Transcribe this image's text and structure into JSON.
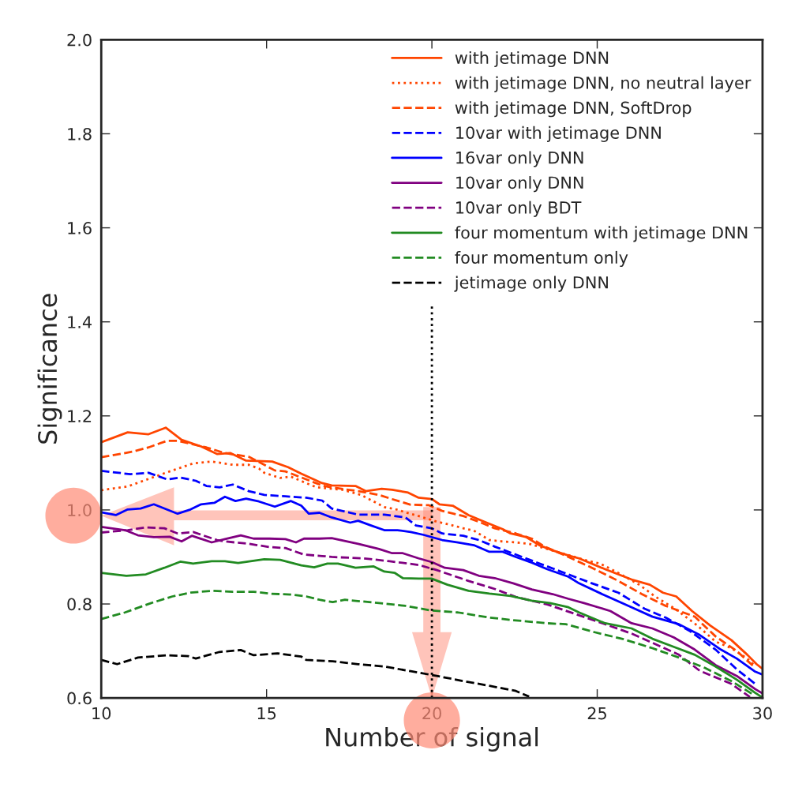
{
  "chart_data": {
    "type": "line",
    "xlabel": "Number of signal",
    "ylabel": "Significance",
    "xlim": [
      10,
      30
    ],
    "ylim": [
      0.6,
      2.0
    ],
    "xticks": [
      10,
      15,
      20,
      25,
      30
    ],
    "yticks": [
      0.6,
      0.8,
      {
        "value": 1,
        "label": "1.0"
      },
      1.2,
      1.4,
      1.6,
      1.8,
      {
        "value": 2,
        "label": "2.0"
      }
    ],
    "legend": "top right",
    "grid": false,
    "ref_lines": [
      {
        "axis": "x",
        "value": 20,
        "color": "#000000",
        "line_style": "dotted"
      }
    ],
    "series": [
      {
        "name": "with jetimage DNN",
        "color": "#ff4500",
        "line_style": "solid",
        "x": [
          10.0,
          10.8,
          11.43,
          11.95,
          12.43,
          13.02,
          13.5,
          13.9,
          14.38,
          15.17,
          15.65,
          16.05,
          16.68,
          16.97,
          17.69,
          18.0,
          18.48,
          18.8,
          19.28,
          19.6,
          20.0,
          20.23,
          20.63,
          21.11,
          21.58,
          22.14,
          22.38,
          22.86,
          23.25,
          23.65,
          24.13,
          24.45,
          25.24,
          26.04,
          26.59,
          26.99,
          27.39,
          27.87,
          28.42,
          29.06,
          29.54,
          29.82,
          30.0
        ],
        "values": [
          1.144,
          1.165,
          1.161,
          1.175,
          1.149,
          1.135,
          1.119,
          1.121,
          1.105,
          1.103,
          1.091,
          1.077,
          1.057,
          1.052,
          1.051,
          1.04,
          1.045,
          1.043,
          1.037,
          1.026,
          1.023,
          1.012,
          1.009,
          0.989,
          0.975,
          0.959,
          0.95,
          0.942,
          0.925,
          0.914,
          0.903,
          0.897,
          0.874,
          0.852,
          0.841,
          0.824,
          0.816,
          0.785,
          0.754,
          0.723,
          0.692,
          0.672,
          0.662
        ]
      },
      {
        "name": "with jetimage DNN, no neutral layer",
        "color": "#ff4500",
        "line_style": "dotted",
        "x": [
          10.0,
          10.8,
          11.51,
          12.07,
          12.78,
          13.34,
          13.98,
          14.46,
          14.77,
          14.93,
          15.41,
          15.73,
          16.2,
          16.52,
          17.29,
          17.85,
          18.24,
          18.56,
          18.88,
          19.2,
          19.6,
          20.15,
          20.47,
          20.95,
          21.27,
          21.74,
          22.14,
          22.54,
          22.94,
          24.76,
          25.08,
          25.56,
          26.27,
          26.75,
          27.39,
          28.03,
          28.58,
          29.06,
          29.54,
          29.78
        ],
        "values": [
          1.042,
          1.05,
          1.068,
          1.082,
          1.099,
          1.103,
          1.096,
          1.096,
          1.088,
          1.079,
          1.068,
          1.071,
          1.057,
          1.048,
          1.043,
          1.032,
          1.018,
          1.006,
          1.002,
          0.995,
          0.987,
          0.975,
          0.97,
          0.961,
          0.956,
          0.936,
          0.933,
          0.931,
          0.928,
          0.891,
          0.886,
          0.869,
          0.841,
          0.816,
          0.788,
          0.754,
          0.72,
          0.706,
          0.684,
          0.667
        ]
      },
      {
        "name": "with jetimage DNN, SoftDrop",
        "color": "#ff4500",
        "line_style": "dashed",
        "x": [
          10.0,
          10.32,
          10.95,
          11.43,
          11.99,
          12.31,
          12.86,
          13.18,
          13.74,
          14.46,
          14.69,
          15.25,
          15.57,
          16.68,
          16.97,
          17.77,
          18.4,
          18.8,
          19.36,
          19.91,
          20.31,
          20.95,
          21.42,
          21.9,
          22.54,
          23.02,
          23.41,
          23.97,
          24.84,
          25.64,
          26.35,
          27.07,
          27.95,
          28.58,
          29.22,
          29.78
        ],
        "values": [
          1.112,
          1.116,
          1.124,
          1.133,
          1.147,
          1.147,
          1.138,
          1.133,
          1.121,
          1.113,
          1.105,
          1.084,
          1.082,
          1.052,
          1.048,
          1.04,
          1.032,
          1.023,
          1.011,
          1.01,
          0.998,
          0.987,
          0.975,
          0.961,
          0.95,
          0.939,
          0.922,
          0.905,
          0.877,
          0.849,
          0.821,
          0.796,
          0.773,
          0.731,
          0.7,
          0.664
        ]
      },
      {
        "name": "10var with jetimage DNN",
        "color": "#0000ff",
        "line_style": "dashed",
        "x": [
          10.0,
          10.4,
          10.88,
          11.43,
          11.99,
          12.39,
          12.86,
          13.18,
          13.58,
          13.98,
          14.46,
          14.93,
          15.57,
          16.2,
          16.68,
          16.97,
          17.77,
          18.56,
          19.2,
          19.52,
          19.99,
          20.31,
          20.95,
          21.42,
          21.9,
          24.84,
          25.64,
          26.43,
          27.07,
          27.79,
          28.58,
          29.22,
          29.78
        ],
        "values": [
          1.083,
          1.08,
          1.076,
          1.079,
          1.065,
          1.069,
          1.062,
          1.051,
          1.048,
          1.054,
          1.04,
          1.032,
          1.029,
          1.026,
          1.02,
          1.003,
          0.99,
          0.99,
          0.984,
          0.967,
          0.961,
          0.95,
          0.945,
          0.936,
          0.922,
          0.844,
          0.824,
          0.79,
          0.771,
          0.743,
          0.703,
          0.661,
          0.63
        ]
      },
      {
        "name": "16var only DNN",
        "color": "#0000ff",
        "line_style": "solid",
        "x": [
          10.0,
          10.44,
          10.8,
          11.19,
          11.59,
          12.31,
          12.7,
          13.02,
          13.42,
          13.74,
          14.06,
          14.38,
          14.77,
          15.25,
          15.73,
          16.05,
          16.28,
          16.6,
          16.97,
          17.53,
          17.77,
          18.16,
          18.56,
          18.96,
          19.36,
          19.75,
          20.31,
          20.79,
          21.27,
          21.74,
          22.14,
          22.54,
          23.02,
          23.49,
          24.13,
          24.45,
          25.24,
          26.04,
          26.67,
          27.47,
          28.1,
          28.74,
          29.22,
          29.78,
          30.0
        ],
        "values": [
          0.995,
          0.989,
          1.001,
          1.003,
          1.012,
          0.992,
          1.001,
          1.012,
          1.015,
          1.028,
          1.019,
          1.024,
          1.018,
          1.007,
          1.019,
          1.009,
          0.992,
          0.994,
          0.984,
          0.973,
          0.977,
          0.967,
          0.957,
          0.957,
          0.953,
          0.947,
          0.936,
          0.931,
          0.925,
          0.911,
          0.911,
          0.9,
          0.888,
          0.874,
          0.858,
          0.844,
          0.818,
          0.793,
          0.773,
          0.757,
          0.734,
          0.703,
          0.684,
          0.656,
          0.65
        ]
      },
      {
        "name": "10var only DNN",
        "color": "#800080",
        "line_style": "solid",
        "x": [
          10.0,
          10.72,
          11.11,
          11.59,
          12.07,
          12.43,
          12.74,
          13.34,
          13.74,
          14.22,
          14.61,
          15.09,
          15.57,
          15.89,
          16.13,
          16.6,
          16.97,
          17.77,
          18.4,
          18.8,
          19.12,
          19.6,
          20.0,
          20.39,
          20.95,
          21.42,
          21.9,
          22.46,
          23.02,
          23.65,
          24.13,
          24.6,
          25.4,
          26.04,
          26.67,
          27.31,
          27.95,
          28.58,
          29.22,
          29.78,
          30.0
        ],
        "values": [
          0.964,
          0.957,
          0.946,
          0.942,
          0.943,
          0.933,
          0.945,
          0.931,
          0.938,
          0.946,
          0.939,
          0.939,
          0.938,
          0.931,
          0.939,
          0.939,
          0.94,
          0.928,
          0.917,
          0.908,
          0.908,
          0.897,
          0.889,
          0.877,
          0.872,
          0.86,
          0.855,
          0.844,
          0.831,
          0.821,
          0.811,
          0.802,
          0.785,
          0.759,
          0.748,
          0.729,
          0.703,
          0.67,
          0.647,
          0.619,
          0.61
        ]
      },
      {
        "name": "10var only BDT",
        "color": "#800080",
        "line_style": "dashed",
        "x": [
          10.0,
          10.8,
          11.35,
          11.91,
          12.31,
          12.78,
          13.5,
          13.74,
          14.46,
          15.09,
          15.57,
          16.13,
          16.68,
          16.97,
          17.93,
          18.72,
          19.6,
          20.15,
          21.11,
          21.9,
          22.54,
          23.49,
          24.45,
          25.24,
          26.04,
          26.75,
          27.47,
          28.1,
          29.06,
          29.62
        ],
        "values": [
          0.952,
          0.957,
          0.963,
          0.961,
          0.95,
          0.953,
          0.936,
          0.933,
          0.928,
          0.921,
          0.919,
          0.905,
          0.902,
          0.9,
          0.897,
          0.891,
          0.883,
          0.872,
          0.849,
          0.832,
          0.815,
          0.799,
          0.776,
          0.757,
          0.737,
          0.715,
          0.692,
          0.658,
          0.63,
          0.602
        ]
      },
      {
        "name": "four momentum with jetimage DNN",
        "color": "#228b22",
        "line_style": "solid",
        "x": [
          10.0,
          10.76,
          11.35,
          11.91,
          12.39,
          12.78,
          13.34,
          13.74,
          14.14,
          14.93,
          15.41,
          16.05,
          16.44,
          16.84,
          17.16,
          17.69,
          18.24,
          18.56,
          18.88,
          19.12,
          19.6,
          19.99,
          20.47,
          21.11,
          21.74,
          22.38,
          23.02,
          23.57,
          24.13,
          24.45,
          25.24,
          26.04,
          26.67,
          27.31,
          27.95,
          28.58,
          29.22,
          29.78,
          30.0
        ],
        "values": [
          0.866,
          0.86,
          0.863,
          0.877,
          0.89,
          0.886,
          0.891,
          0.891,
          0.887,
          0.895,
          0.894,
          0.882,
          0.878,
          0.886,
          0.886,
          0.877,
          0.88,
          0.869,
          0.866,
          0.855,
          0.854,
          0.854,
          0.841,
          0.828,
          0.822,
          0.817,
          0.807,
          0.802,
          0.793,
          0.782,
          0.759,
          0.748,
          0.726,
          0.709,
          0.692,
          0.667,
          0.639,
          0.611,
          0.601
        ]
      },
      {
        "name": "four momentum only",
        "color": "#228b22",
        "line_style": "dashed",
        "x": [
          10.0,
          10.72,
          11.51,
          12.15,
          12.7,
          13.34,
          13.98,
          14.61,
          15.09,
          15.73,
          16.2,
          16.6,
          17.0,
          17.37,
          18.24,
          19.2,
          19.99,
          20.79,
          21.74,
          22.54,
          23.49,
          24.05,
          24.92,
          25.8,
          26.67,
          27.47,
          28.26,
          29.06,
          29.7
        ],
        "values": [
          0.768,
          0.782,
          0.802,
          0.816,
          0.824,
          0.828,
          0.826,
          0.826,
          0.822,
          0.82,
          0.816,
          0.809,
          0.804,
          0.809,
          0.803,
          0.796,
          0.786,
          0.782,
          0.771,
          0.765,
          0.759,
          0.757,
          0.74,
          0.725,
          0.706,
          0.686,
          0.664,
          0.636,
          0.608
        ]
      },
      {
        "name": "jetimage only DNN",
        "color": "#000000",
        "line_style": "dashed",
        "x": [
          10.0,
          10.48,
          11.11,
          11.99,
          12.63,
          12.86,
          13.58,
          14.22,
          14.61,
          15.33,
          16.05,
          16.2,
          17.0,
          17.77,
          18.56,
          19.36,
          20.15,
          20.95,
          21.74,
          22.54,
          22.94
        ],
        "values": [
          0.681,
          0.672,
          0.686,
          0.691,
          0.689,
          0.684,
          0.698,
          0.702,
          0.691,
          0.695,
          0.688,
          0.681,
          0.678,
          0.672,
          0.667,
          0.657,
          0.647,
          0.636,
          0.626,
          0.615,
          0.603
        ]
      }
    ]
  }
}
